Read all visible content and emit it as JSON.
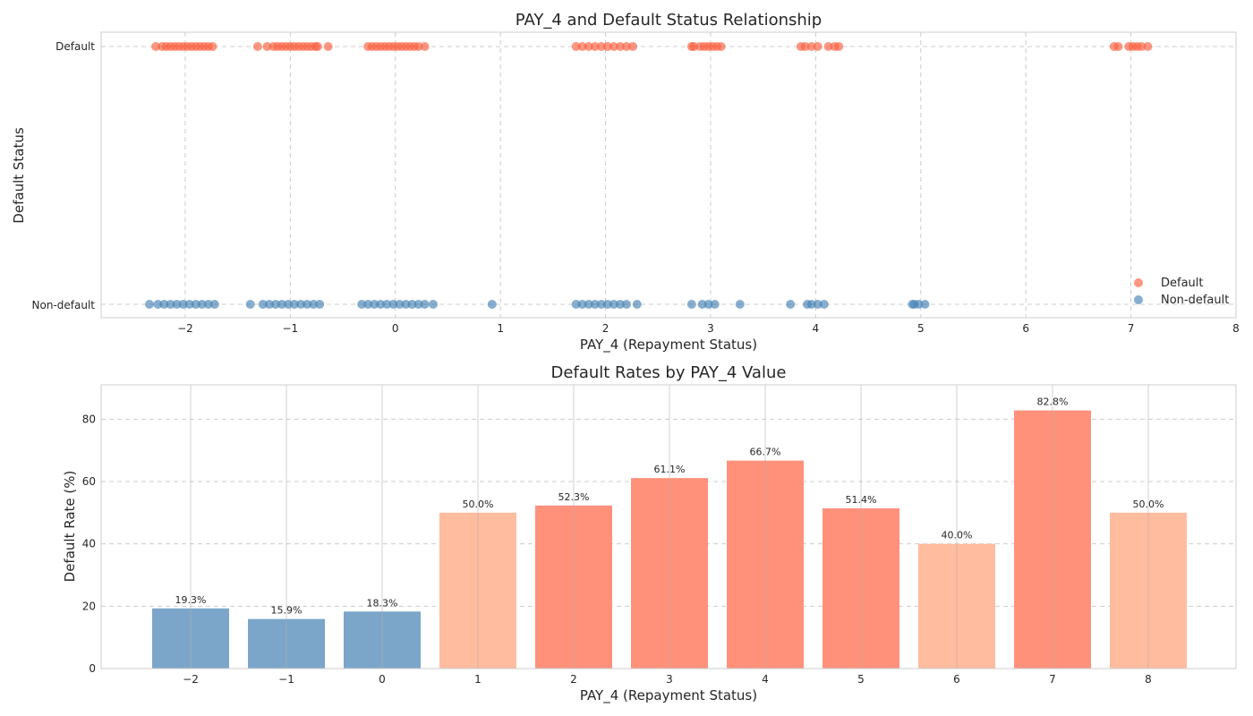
{
  "chart_data": [
    {
      "type": "scatter",
      "title": "PAY_4 and Default Status Relationship",
      "xlabel": "PAY_4 (Repayment Status)",
      "ylabel": "Default Status",
      "xlim": [
        -2.8,
        8
      ],
      "x_ticks": [
        -2,
        -1,
        0,
        1,
        2,
        3,
        4,
        5,
        6,
        7,
        8
      ],
      "x_tick_labels": [
        "−2",
        "−1",
        "0",
        "1",
        "2",
        "3",
        "4",
        "5",
        "6",
        "7",
        "8"
      ],
      "y_tick_labels": [
        "Non-default",
        "Default"
      ],
      "grid": true,
      "legend_position": "bottom-right",
      "series": [
        {
          "name": "Default",
          "color": "#fa5f3f",
          "y": 1,
          "x": [
            -2.28,
            -2.22,
            -2.18,
            -2.14,
            -2.1,
            -2.06,
            -2.02,
            -1.98,
            -1.94,
            -1.9,
            -1.86,
            -1.82,
            -1.78,
            -1.74,
            -1.31,
            -1.22,
            -1.16,
            -1.12,
            -1.08,
            -1.04,
            -1.0,
            -0.96,
            -0.92,
            -0.88,
            -0.84,
            -0.8,
            -0.76,
            -0.74,
            -0.64,
            -0.26,
            -0.22,
            -0.18,
            -0.14,
            -0.1,
            -0.06,
            -0.02,
            0.02,
            0.06,
            0.1,
            0.14,
            0.18,
            0.22,
            0.28,
            1.72,
            1.78,
            1.84,
            1.9,
            1.96,
            2.02,
            2.08,
            2.14,
            2.2,
            2.26,
            2.82,
            2.84,
            2.9,
            2.94,
            2.98,
            3.02,
            3.06,
            3.1,
            3.86,
            3.9,
            3.96,
            4.02,
            4.12,
            4.18,
            4.22,
            6.84,
            6.88,
            6.98,
            7.02,
            7.06,
            7.1,
            7.16
          ]
        },
        {
          "name": "Non-default",
          "color": "#4682b4",
          "y": 0,
          "x": [
            -2.34,
            -2.26,
            -2.2,
            -2.14,
            -2.08,
            -2.02,
            -1.96,
            -1.9,
            -1.84,
            -1.78,
            -1.72,
            -1.38,
            -1.26,
            -1.2,
            -1.14,
            -1.08,
            -1.02,
            -0.96,
            -0.9,
            -0.84,
            -0.78,
            -0.72,
            -0.32,
            -0.26,
            -0.2,
            -0.14,
            -0.08,
            -0.02,
            0.04,
            0.1,
            0.16,
            0.22,
            0.28,
            0.36,
            0.92,
            1.72,
            1.78,
            1.84,
            1.9,
            1.96,
            2.02,
            2.08,
            2.14,
            2.2,
            2.3,
            2.82,
            2.92,
            2.98,
            3.04,
            3.28,
            3.76,
            3.92,
            3.96,
            4.02,
            4.08,
            4.92,
            4.94,
            4.98,
            5.04
          ]
        }
      ]
    },
    {
      "type": "bar",
      "title": "Default Rates by PAY_4 Value",
      "xlabel": "PAY_4 (Repayment Status)",
      "ylabel": "Default Rate (%)",
      "ylim": [
        0,
        91
      ],
      "y_ticks": [
        0,
        20,
        40,
        60,
        80
      ],
      "categories": [
        "−2",
        "−1",
        "0",
        "1",
        "2",
        "3",
        "4",
        "5",
        "6",
        "7",
        "8"
      ],
      "values": [
        19.3,
        15.9,
        18.3,
        50.0,
        52.3,
        61.1,
        66.7,
        51.4,
        40.0,
        82.8,
        50.0
      ],
      "value_labels": [
        "19.3%",
        "15.9%",
        "18.3%",
        "50.0%",
        "52.3%",
        "61.1%",
        "66.7%",
        "51.4%",
        "40.0%",
        "82.8%",
        "50.0%"
      ],
      "bar_colors": [
        "#7ba6ca",
        "#7ba6ca",
        "#7ba6ca",
        "#ffbc9f",
        "#ff917b",
        "#ff917b",
        "#ff917b",
        "#ff917b",
        "#ffbc9f",
        "#ff917b",
        "#ffbc9f"
      ],
      "grid": true
    }
  ]
}
